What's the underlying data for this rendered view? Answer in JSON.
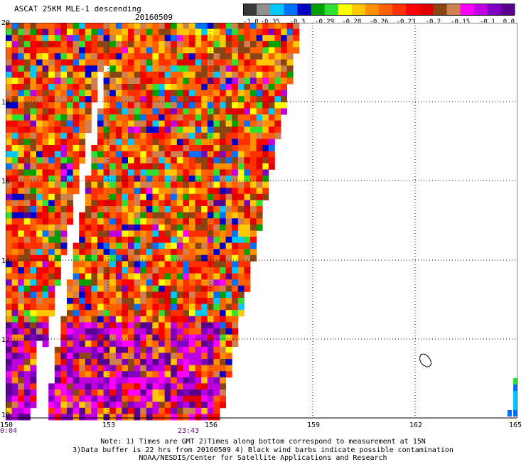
{
  "header": {
    "title": "ASCAT 25KM MLE-1 descending",
    "date": "20160509"
  },
  "colorbar": {
    "labels": [
      "-1.0",
      "-0.35",
      "-0.3",
      "-0.29",
      "-0.28",
      "-0.26",
      "-0.23",
      "-0.2",
      "-0.15",
      "-0.1",
      "0.0"
    ],
    "colors": [
      "#3a3a3a",
      "#909090",
      "#00c8ff",
      "#0070ff",
      "#0000c8",
      "#00a000",
      "#30e030",
      "#ffff00",
      "#ffc800",
      "#ff9000",
      "#ff6000",
      "#ff3000",
      "#ff0000",
      "#e00000",
      "#8b4513",
      "#d08050",
      "#ff00ff",
      "#c000e0",
      "#8000c0",
      "#5a0090"
    ]
  },
  "map": {
    "lat_labels": [
      "20",
      "18",
      "16",
      "14",
      "12",
      "10"
    ],
    "lon_labels": [
      "150",
      "153",
      "156",
      "159",
      "162",
      "165"
    ],
    "lon_range": [
      150,
      165
    ],
    "lat_range": [
      10,
      20
    ],
    "time_labels": [
      "0:04",
      "23:43"
    ]
  },
  "notes": {
    "line1": "Note: 1) Times are GMT 2)Times along bottom correspond to measurement at 15N",
    "line2": "3)Data buffer is 22 hrs from 20160509 4) Black wind barbs indicate possible contamination",
    "line3": "NOAA/NESDIS/Center for Satellite Applications and Research"
  }
}
